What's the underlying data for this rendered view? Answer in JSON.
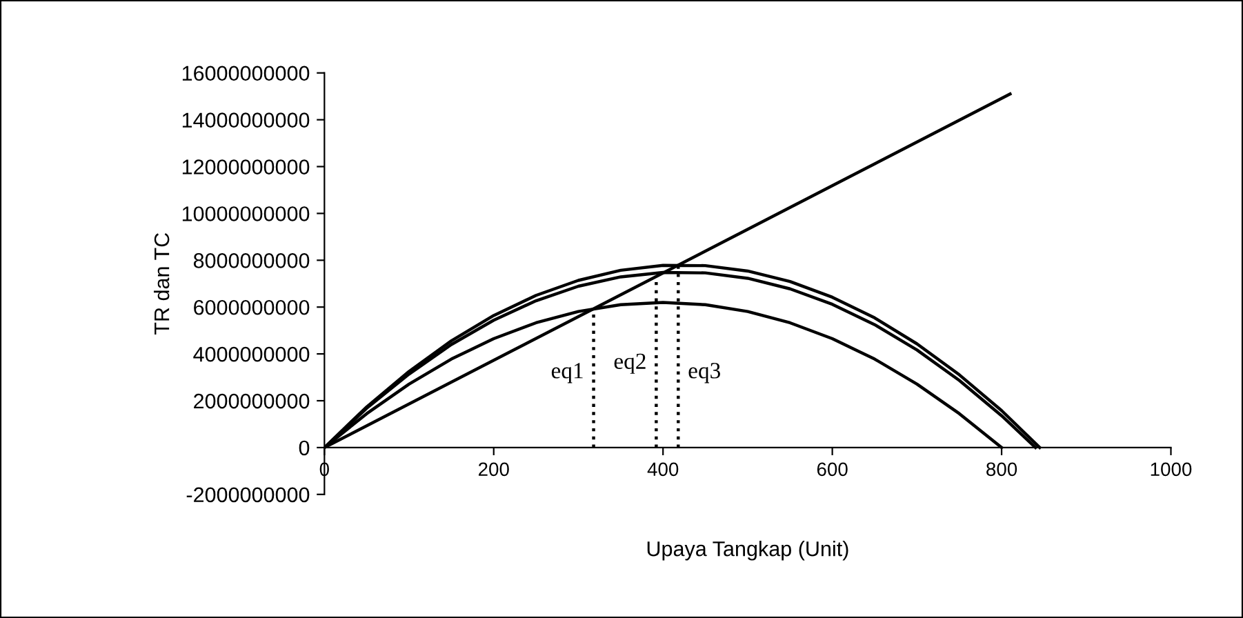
{
  "chart_data": {
    "type": "line",
    "xlabel": "Upaya Tangkap (Unit)",
    "ylabel": "TR dan TC",
    "xlim": [
      0,
      1000
    ],
    "xticks": [
      0,
      200,
      400,
      600,
      800,
      1000
    ],
    "ylim": [
      -2000000000,
      16000000000
    ],
    "yticks": [
      -2000000000,
      0,
      2000000000,
      4000000000,
      6000000000,
      8000000000,
      10000000000,
      12000000000,
      14000000000,
      16000000000
    ],
    "grid": false,
    "legend": false,
    "marker": "none",
    "series": [
      {
        "color": "#000000",
        "x": [
          0,
          50,
          100,
          150,
          200,
          250,
          300,
          350,
          400,
          450,
          500,
          550,
          600,
          650,
          700,
          750,
          800
        ],
        "values": [
          0,
          1450000000,
          2710000000,
          3780000000,
          4650000000,
          5330000000,
          5810000000,
          6100000000,
          6200000000,
          6100000000,
          5810000000,
          5330000000,
          4650000000,
          3780000000,
          2710000000,
          1450000000,
          0
        ]
      },
      {
        "color": "#000000",
        "x": [
          0,
          50,
          100,
          150,
          200,
          250,
          300,
          350,
          400,
          450,
          500,
          550,
          600,
          650,
          700,
          750,
          800,
          840
        ],
        "values": [
          0,
          1680000000,
          3140000000,
          4400000000,
          5440000000,
          6270000000,
          6890000000,
          7290000000,
          7480000000,
          7460000000,
          7230000000,
          6780000000,
          6120000000,
          5250000000,
          4170000000,
          2870000000,
          1360000000,
          0
        ]
      },
      {
        "color": "#000000",
        "x": [
          0,
          50,
          100,
          150,
          200,
          250,
          300,
          350,
          400,
          450,
          500,
          550,
          600,
          650,
          700,
          750,
          800,
          845
        ],
        "values": [
          0,
          1740000000,
          3250000000,
          4560000000,
          5640000000,
          6500000000,
          7140000000,
          7570000000,
          7780000000,
          7770000000,
          7540000000,
          7090000000,
          6420000000,
          5540000000,
          4430000000,
          3110000000,
          1580000000,
          0
        ]
      },
      {
        "color": "#000000",
        "x": [
          0,
          810
        ],
        "values": [
          0,
          15100000000
        ]
      },
      {
        "color": "#000000",
        "line_style": "dotted",
        "x": [
          318,
          318
        ],
        "values": [
          0,
          5900000000
        ]
      },
      {
        "color": "#000000",
        "line_style": "dotted",
        "x": [
          392,
          392
        ],
        "values": [
          0,
          7300000000
        ]
      },
      {
        "color": "#000000",
        "line_style": "dotted",
        "x": [
          418,
          418
        ],
        "values": [
          0,
          7800000000
        ]
      }
    ],
    "annotations": [
      {
        "text": "eq1",
        "x": 318,
        "y": 3200000000
      },
      {
        "text": "eq2",
        "x": 392,
        "y": 3600000000
      },
      {
        "text": "eq3",
        "x": 418,
        "y": 3200000000
      }
    ]
  }
}
